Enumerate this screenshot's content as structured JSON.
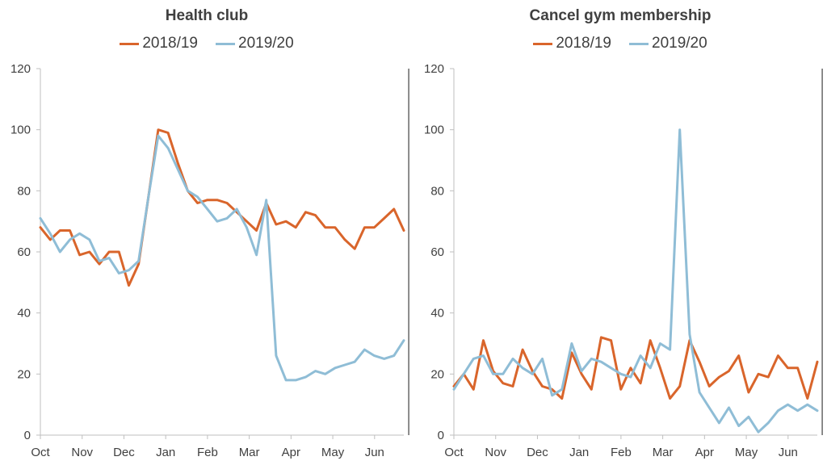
{
  "colors": {
    "s2018": "#d9652b",
    "s2019": "#8fbdd6",
    "axis": "#bfbfbf",
    "marker": "#404040"
  },
  "chart_data": [
    {
      "type": "line",
      "title": "Health club",
      "xlabel": "",
      "ylabel": "",
      "ylim": [
        0,
        120
      ],
      "yticks": [
        "0",
        "20",
        "40",
        "60",
        "80",
        "100",
        "120"
      ],
      "months": [
        "Oct",
        "Nov",
        "Dec",
        "Jan",
        "Feb",
        "Mar",
        "Apr",
        "May",
        "Jun"
      ],
      "legend_position": "top-center",
      "vertical_marker_week": 39,
      "series": [
        {
          "name": "2018/19",
          "color_key": "s2018",
          "values": [
            68,
            64,
            67,
            67,
            59,
            60,
            56,
            60,
            60,
            49,
            56,
            78,
            100,
            99,
            89,
            80,
            76,
            77,
            77,
            76,
            73,
            70,
            67,
            76,
            69,
            70,
            68,
            73,
            72,
            68,
            68,
            64,
            61,
            68,
            68,
            71,
            74,
            67
          ]
        },
        {
          "name": "2019/20",
          "color_key": "s2019",
          "values": [
            71,
            66,
            60,
            64,
            66,
            64,
            57,
            58,
            53,
            54,
            57,
            78,
            98,
            94,
            87,
            80,
            78,
            74,
            70,
            71,
            74,
            68,
            59,
            77,
            26,
            18,
            18,
            19,
            21,
            20,
            22,
            23,
            24,
            28,
            26,
            25,
            26,
            31
          ]
        }
      ]
    },
    {
      "type": "line",
      "title": "Cancel gym membership",
      "xlabel": "",
      "ylabel": "",
      "ylim": [
        0,
        120
      ],
      "yticks": [
        "0",
        "20",
        "40",
        "60",
        "80",
        "100",
        "120"
      ],
      "months": [
        "Oct",
        "Nov",
        "Dec",
        "Jan",
        "Feb",
        "Mar",
        "Apr",
        "May",
        "Jun"
      ],
      "legend_position": "top-center",
      "vertical_marker_week": 39,
      "series": [
        {
          "name": "2018/19",
          "color_key": "s2018",
          "values": [
            16,
            20,
            15,
            31,
            21,
            17,
            16,
            28,
            21,
            16,
            15,
            12,
            27,
            20,
            15,
            32,
            31,
            15,
            22,
            17,
            31,
            22,
            12,
            16,
            31,
            24,
            16,
            19,
            21,
            26,
            14,
            20,
            19,
            26,
            22,
            22,
            12,
            24
          ]
        },
        {
          "name": "2019/20",
          "color_key": "s2019",
          "values": [
            15,
            20,
            25,
            26,
            20,
            20,
            25,
            22,
            20,
            25,
            13,
            15,
            30,
            21,
            25,
            24,
            22,
            20,
            19,
            26,
            22,
            30,
            28,
            100,
            33,
            14,
            9,
            4,
            9,
            3,
            6,
            1,
            4,
            8,
            10,
            8,
            10,
            8
          ]
        }
      ]
    }
  ]
}
